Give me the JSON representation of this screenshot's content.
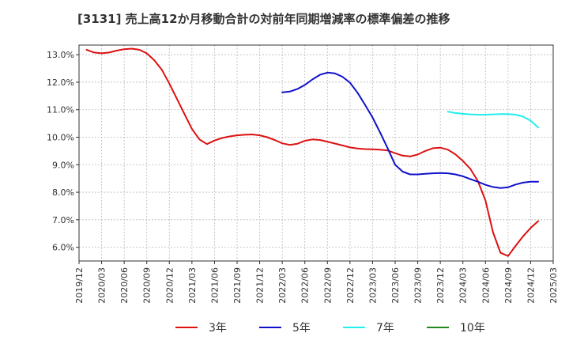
{
  "chart_data": {
    "type": "line",
    "title": "[3131]  売上高12か月移動合計の対前年同期増減率の標準偏差の推移",
    "xlabel": "",
    "ylabel": "",
    "x_ticks": [
      "2019/12",
      "2020/03",
      "2020/06",
      "2020/09",
      "2020/12",
      "2021/03",
      "2021/06",
      "2021/09",
      "2021/12",
      "2022/03",
      "2022/06",
      "2022/09",
      "2022/12",
      "2023/03",
      "2023/06",
      "2023/09",
      "2023/12",
      "2024/03",
      "2024/06",
      "2024/09",
      "2024/12",
      "2025/03"
    ],
    "y_ticks": [
      "6.0%",
      "7.0%",
      "8.0%",
      "9.0%",
      "10.0%",
      "11.0%",
      "12.0%",
      "13.0%"
    ],
    "ylim": [
      5.5,
      13.35
    ],
    "grid": true,
    "legend_position": "bottom",
    "series": [
      {
        "name": "3年",
        "color": "#dd1111",
        "points": [
          [
            "2020/01",
            13.18
          ],
          [
            "2020/02",
            13.08
          ],
          [
            "2020/03",
            13.05
          ],
          [
            "2020/04",
            13.08
          ],
          [
            "2020/05",
            13.15
          ],
          [
            "2020/06",
            13.2
          ],
          [
            "2020/07",
            13.22
          ],
          [
            "2020/08",
            13.18
          ],
          [
            "2020/09",
            13.05
          ],
          [
            "2020/10",
            12.8
          ],
          [
            "2020/11",
            12.45
          ],
          [
            "2020/12",
            11.95
          ],
          [
            "2021/01",
            11.4
          ],
          [
            "2021/02",
            10.85
          ],
          [
            "2021/03",
            10.3
          ],
          [
            "2021/04",
            9.92
          ],
          [
            "2021/05",
            9.75
          ],
          [
            "2021/06",
            9.88
          ],
          [
            "2021/07",
            9.97
          ],
          [
            "2021/08",
            10.03
          ],
          [
            "2021/09",
            10.07
          ],
          [
            "2021/10",
            10.09
          ],
          [
            "2021/11",
            10.1
          ],
          [
            "2021/12",
            10.07
          ],
          [
            "2022/01",
            10.0
          ],
          [
            "2022/02",
            9.9
          ],
          [
            "2022/03",
            9.78
          ],
          [
            "2022/04",
            9.72
          ],
          [
            "2022/05",
            9.76
          ],
          [
            "2022/06",
            9.87
          ],
          [
            "2022/07",
            9.92
          ],
          [
            "2022/08",
            9.9
          ],
          [
            "2022/09",
            9.84
          ],
          [
            "2022/10",
            9.77
          ],
          [
            "2022/11",
            9.7
          ],
          [
            "2022/12",
            9.63
          ],
          [
            "2023/01",
            9.59
          ],
          [
            "2023/02",
            9.57
          ],
          [
            "2023/03",
            9.56
          ],
          [
            "2023/04",
            9.55
          ],
          [
            "2023/05",
            9.52
          ],
          [
            "2023/06",
            9.42
          ],
          [
            "2023/07",
            9.33
          ],
          [
            "2023/08",
            9.3
          ],
          [
            "2023/09",
            9.37
          ],
          [
            "2023/10",
            9.5
          ],
          [
            "2023/11",
            9.6
          ],
          [
            "2023/12",
            9.62
          ],
          [
            "2024/01",
            9.55
          ],
          [
            "2024/02",
            9.38
          ],
          [
            "2024/03",
            9.14
          ],
          [
            "2024/04",
            8.85
          ],
          [
            "2024/05",
            8.4
          ],
          [
            "2024/06",
            7.7
          ],
          [
            "2024/07",
            6.55
          ],
          [
            "2024/08",
            5.8
          ],
          [
            "2024/09",
            5.68
          ],
          [
            "2024/10",
            6.05
          ],
          [
            "2024/11",
            6.4
          ],
          [
            "2024/12",
            6.7
          ],
          [
            "2025/01",
            6.95
          ]
        ]
      },
      {
        "name": "5年",
        "color": "#1111cc",
        "points": [
          [
            "2022/03",
            11.63
          ],
          [
            "2022/04",
            11.66
          ],
          [
            "2022/05",
            11.75
          ],
          [
            "2022/06",
            11.9
          ],
          [
            "2022/07",
            12.1
          ],
          [
            "2022/08",
            12.27
          ],
          [
            "2022/09",
            12.35
          ],
          [
            "2022/10",
            12.32
          ],
          [
            "2022/11",
            12.2
          ],
          [
            "2022/12",
            11.98
          ],
          [
            "2023/01",
            11.62
          ],
          [
            "2023/02",
            11.18
          ],
          [
            "2023/03",
            10.72
          ],
          [
            "2023/04",
            10.17
          ],
          [
            "2023/05",
            9.6
          ],
          [
            "2023/06",
            9.0
          ],
          [
            "2023/07",
            8.75
          ],
          [
            "2023/08",
            8.65
          ],
          [
            "2023/09",
            8.65
          ],
          [
            "2023/10",
            8.67
          ],
          [
            "2023/11",
            8.69
          ],
          [
            "2023/12",
            8.7
          ],
          [
            "2024/01",
            8.69
          ],
          [
            "2024/02",
            8.65
          ],
          [
            "2024/03",
            8.58
          ],
          [
            "2024/04",
            8.48
          ],
          [
            "2024/05",
            8.38
          ],
          [
            "2024/06",
            8.27
          ],
          [
            "2024/07",
            8.19
          ],
          [
            "2024/08",
            8.15
          ],
          [
            "2024/09",
            8.18
          ],
          [
            "2024/10",
            8.28
          ],
          [
            "2024/11",
            8.35
          ],
          [
            "2024/12",
            8.38
          ],
          [
            "2025/01",
            8.38
          ]
        ]
      },
      {
        "name": "7年",
        "color": "#22eeee",
        "points": [
          [
            "2024/01",
            10.93
          ],
          [
            "2024/02",
            10.88
          ],
          [
            "2024/03",
            10.85
          ],
          [
            "2024/04",
            10.83
          ],
          [
            "2024/05",
            10.82
          ],
          [
            "2024/06",
            10.82
          ],
          [
            "2024/07",
            10.83
          ],
          [
            "2024/08",
            10.84
          ],
          [
            "2024/09",
            10.84
          ],
          [
            "2024/10",
            10.82
          ],
          [
            "2024/11",
            10.75
          ],
          [
            "2024/12",
            10.6
          ],
          [
            "2025/01",
            10.35
          ]
        ]
      },
      {
        "name": "10年",
        "color": "#228822",
        "points": []
      }
    ]
  }
}
